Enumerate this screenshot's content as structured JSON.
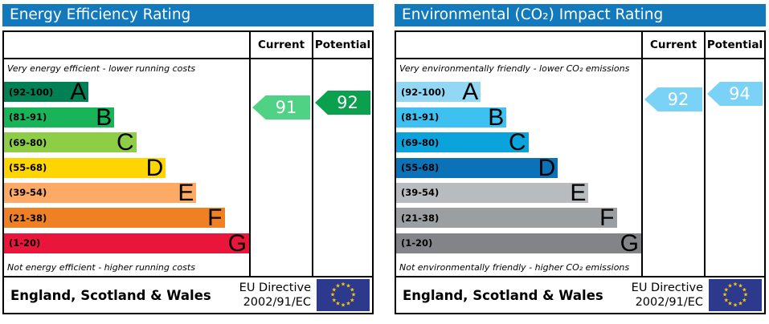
{
  "colors": {
    "title_bar": "#127abc",
    "border": "#000000",
    "flag_blue": "#2c398c",
    "flag_star": "#ffcc00"
  },
  "charts": [
    {
      "title": "Energy Efficiency Rating",
      "columns": {
        "current": "Current",
        "potential": "Potential"
      },
      "top_caption": "Very energy efficient - lower running costs",
      "bottom_caption": "Not energy efficient - higher running costs",
      "bands": [
        {
          "range": "(92-100)",
          "letter": "A",
          "color": "#008054",
          "width_pct": 34.5
        },
        {
          "range": "(81-91)",
          "letter": "B",
          "color": "#19b459",
          "width_pct": 45
        },
        {
          "range": "(69-80)",
          "letter": "C",
          "color": "#8dce46",
          "width_pct": 54
        },
        {
          "range": "(55-68)",
          "letter": "D",
          "color": "#ffd500",
          "width_pct": 66
        },
        {
          "range": "(39-54)",
          "letter": "E",
          "color": "#fcaa65",
          "width_pct": 78.5
        },
        {
          "range": "(21-38)",
          "letter": "F",
          "color": "#ef8023",
          "width_pct": 90
        },
        {
          "range": "(1-20)",
          "letter": "G",
          "color": "#e9153b",
          "width_pct": 100
        }
      ],
      "current": {
        "value": "91",
        "color": "#4fd284"
      },
      "potential": {
        "value": "92",
        "color": "#0aa04e"
      },
      "footer": {
        "region": "England, Scotland & Wales",
        "directive_line1": "EU Directive",
        "directive_line2": "2002/91/EC"
      }
    },
    {
      "title": "Environmental (CO₂) Impact Rating",
      "columns": {
        "current": "Current",
        "potential": "Potential"
      },
      "top_caption": "Very environmentally friendly - lower CO₂ emissions",
      "bottom_caption": "Not environmentally friendly - higher CO₂ emissions",
      "bands": [
        {
          "range": "(92-100)",
          "letter": "A",
          "color": "#92d8f5",
          "width_pct": 34.5
        },
        {
          "range": "(81-91)",
          "letter": "B",
          "color": "#3ec1f0",
          "width_pct": 45
        },
        {
          "range": "(69-80)",
          "letter": "C",
          "color": "#0ba3dc",
          "width_pct": 54
        },
        {
          "range": "(55-68)",
          "letter": "D",
          "color": "#0b72b8",
          "width_pct": 66
        },
        {
          "range": "(39-54)",
          "letter": "E",
          "color": "#b9bcbe",
          "width_pct": 78.5
        },
        {
          "range": "(21-38)",
          "letter": "F",
          "color": "#9c9fa1",
          "width_pct": 90
        },
        {
          "range": "(1-20)",
          "letter": "G",
          "color": "#828487",
          "width_pct": 100
        }
      ],
      "current": {
        "value": "92",
        "color": "#7bd2f7"
      },
      "potential": {
        "value": "94",
        "color": "#7bd2f7"
      },
      "footer": {
        "region": "England, Scotland & Wales",
        "directive_line1": "EU Directive",
        "directive_line2": "2002/91/EC"
      }
    }
  ],
  "chart_data": [
    {
      "type": "bar",
      "orientation": "horizontal",
      "title": "Energy Efficiency Rating",
      "categories": [
        "A (92-100)",
        "B (81-91)",
        "C (69-80)",
        "D (55-68)",
        "E (39-54)",
        "F (21-38)",
        "G (1-20)"
      ],
      "band_colors": [
        "#008054",
        "#19b459",
        "#8dce46",
        "#ffd500",
        "#fcaa65",
        "#ef8023",
        "#e9153b"
      ],
      "scale_range": [
        1,
        100
      ],
      "current": 91,
      "potential": 92,
      "annotations": [
        "Very energy efficient - lower running costs",
        "Not energy efficient - higher running costs"
      ],
      "footer": "England, Scotland & Wales — EU Directive 2002/91/EC"
    },
    {
      "type": "bar",
      "orientation": "horizontal",
      "title": "Environmental (CO₂) Impact Rating",
      "categories": [
        "A (92-100)",
        "B (81-91)",
        "C (69-80)",
        "D (55-68)",
        "E (39-54)",
        "F (21-38)",
        "G (1-20)"
      ],
      "band_colors": [
        "#92d8f5",
        "#3ec1f0",
        "#0ba3dc",
        "#0b72b8",
        "#b9bcbe",
        "#9c9fa1",
        "#828487"
      ],
      "scale_range": [
        1,
        100
      ],
      "current": 92,
      "potential": 94,
      "annotations": [
        "Very environmentally friendly - lower CO₂ emissions",
        "Not environmentally friendly - higher CO₂ emissions"
      ],
      "footer": "England, Scotland & Wales — EU Directive 2002/91/EC"
    }
  ]
}
